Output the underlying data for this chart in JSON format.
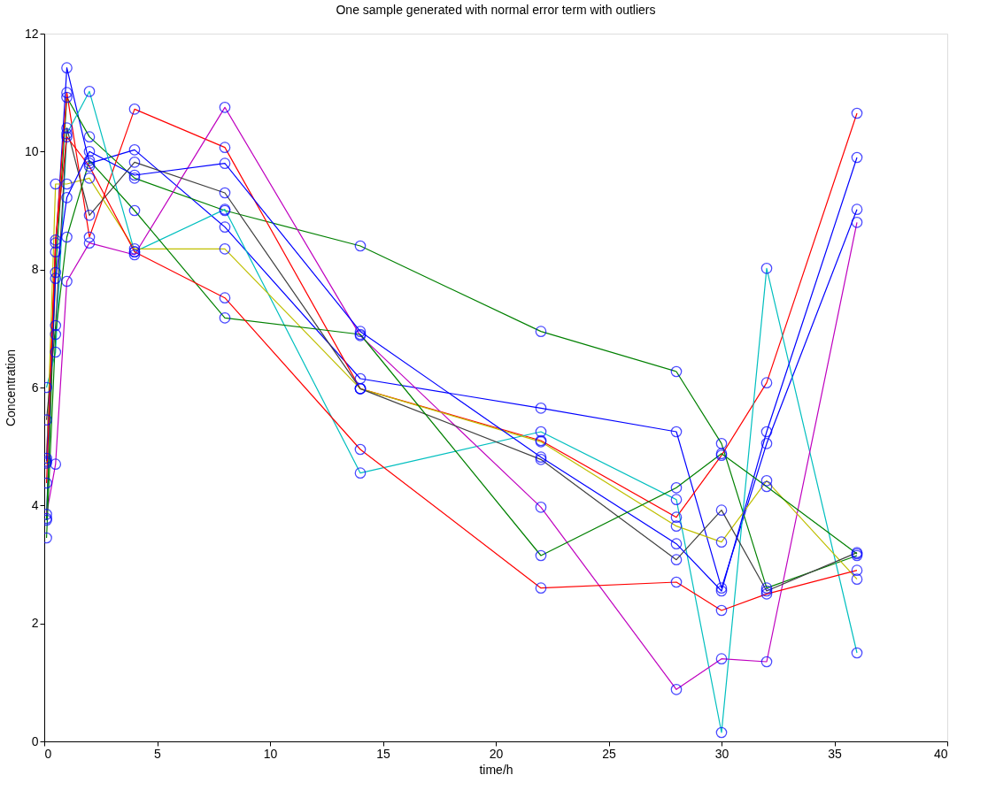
{
  "chart_data": {
    "type": "line",
    "title": "One sample generated with normal error term with outliers",
    "xlabel": "time/h",
    "ylabel": "Concentration",
    "x": [
      0.1,
      0.5,
      1,
      2,
      4,
      8,
      14,
      22,
      28,
      30,
      32,
      36
    ],
    "series": [
      {
        "color": "#0000ff",
        "values": [
          3.78,
          8.3,
          11.42,
          9.8,
          10.03,
          8.72,
          6.15,
          5.65,
          5.25,
          2.6,
          5.05,
          9.02
        ]
      },
      {
        "color": "#008000",
        "values": [
          3.75,
          7.95,
          10.92,
          10.25,
          9.55,
          9.0,
          8.4,
          6.95,
          6.27,
          5.05,
          2.6,
          3.15
        ]
      },
      {
        "color": "#ff0000",
        "values": [
          4.8,
          8.45,
          11.0,
          8.55,
          10.72,
          10.07,
          5.98,
          5.1,
          3.8,
          4.85,
          6.08,
          10.65
        ]
      },
      {
        "color": "#00bfbf",
        "values": [
          6.0,
          6.6,
          10.3,
          11.02,
          8.3,
          9.02,
          4.55,
          5.25,
          4.1,
          0.15,
          8.02,
          1.5
        ]
      },
      {
        "color": "#bf00bf",
        "values": [
          3.85,
          4.7,
          7.8,
          8.45,
          8.25,
          10.75,
          6.88,
          3.97,
          0.88,
          1.4,
          1.35,
          8.8
        ]
      },
      {
        "color": "#bfbf00",
        "values": [
          4.72,
          9.45,
          9.45,
          9.55,
          8.35,
          8.35,
          5.98,
          5.08,
          3.65,
          3.38,
          4.42,
          2.75
        ]
      },
      {
        "color": "#404040",
        "values": [
          5.45,
          7.05,
          10.4,
          8.92,
          9.82,
          9.3,
          5.98,
          4.78,
          3.08,
          3.92,
          2.55,
          3.2
        ]
      },
      {
        "color": "#0000ff",
        "values": [
          4.75,
          7.85,
          9.22,
          10.0,
          9.6,
          9.8,
          6.95,
          4.82,
          3.35,
          2.55,
          5.25,
          9.9
        ]
      },
      {
        "color": "#008000",
        "values": [
          3.45,
          6.9,
          8.55,
          9.85,
          9.0,
          7.18,
          6.9,
          3.15,
          4.3,
          4.88,
          4.32,
          3.18
        ]
      },
      {
        "color": "#ff0000",
        "values": [
          4.38,
          8.5,
          10.25,
          9.75,
          8.3,
          7.52,
          4.95,
          2.6,
          2.7,
          2.22,
          2.5,
          2.9
        ]
      }
    ],
    "xlim": [
      0,
      40
    ],
    "xticks": [
      0,
      5,
      10,
      15,
      20,
      25,
      30,
      35,
      40
    ],
    "ylim": [
      0,
      12
    ],
    "yticks": [
      0,
      2,
      4,
      6,
      8,
      10,
      12
    ],
    "grid": false,
    "legend": false,
    "marker": "circle",
    "line_style": "solid"
  }
}
